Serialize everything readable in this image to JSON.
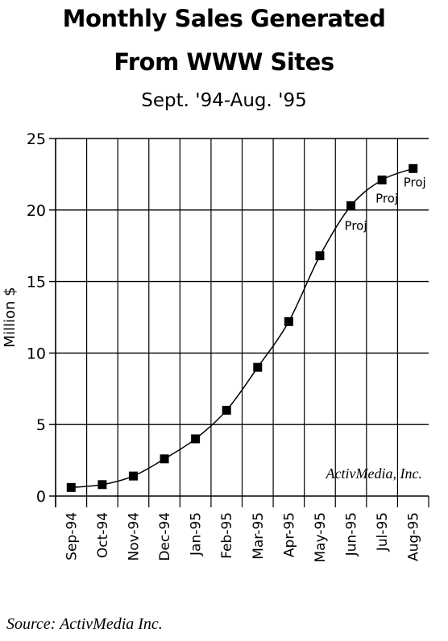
{
  "chart_data": {
    "type": "line",
    "title": "Monthly Sales Generated",
    "title_line2": "From WWW Sites",
    "subtitle": "Sept. '94-Aug. '95",
    "ylabel": "Million $",
    "xlabel": "",
    "ylim": [
      0,
      25
    ],
    "yticks": [
      "0",
      "5",
      "10",
      "15",
      "20",
      "25"
    ],
    "grid": "horizontal and vertical",
    "categories": [
      "Sep-94",
      "Oct-94",
      "Nov-94",
      "Dec-94",
      "Jan-95",
      "Feb-95",
      "Mar-95",
      "Apr-95",
      "May-95",
      "Jun-95",
      "Jul-95",
      "Aug-95"
    ],
    "series": [
      {
        "values": [
          0.6,
          0.8,
          1.4,
          2.6,
          4.0,
          6.0,
          9.0,
          12.2,
          16.8,
          20.3,
          22.1,
          22.9
        ]
      }
    ],
    "annotations": [
      {
        "category": "Jun-95",
        "text": "Proj"
      },
      {
        "category": "Jul-95",
        "text": "Proj"
      },
      {
        "category": "Aug-95",
        "text": "Proj"
      }
    ],
    "watermark": "ActivMedia, Inc."
  },
  "footer": {
    "source": "Source: ActivMedia Inc."
  }
}
